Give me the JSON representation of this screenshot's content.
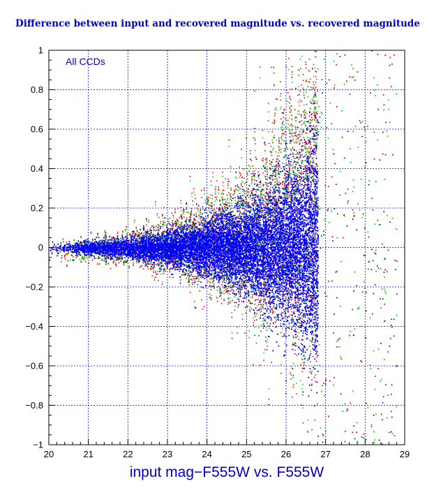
{
  "chart_data": {
    "type": "scatter",
    "title": "Difference between input and recovered magnitude vs. recovered magnitude",
    "xlabel": "input mag−F555W vs. F555W",
    "ylabel": "",
    "annotation": "All CCDs",
    "xlim": [
      20,
      29
    ],
    "ylim": [
      -1,
      1
    ],
    "x_ticks": [
      "20",
      "21",
      "22",
      "23",
      "24",
      "25",
      "26",
      "27",
      "28",
      "29"
    ],
    "y_ticks": [
      "−1",
      "−0.8",
      "−0.6",
      "−0.4",
      "−0.2",
      "0",
      "0.2",
      "0.4",
      "0.6",
      "0.8",
      "1"
    ],
    "grid": true,
    "colors": {
      "title": "#0000cc",
      "grid": "#0000cc",
      "main_points": "#0000ff",
      "red_points": "#ff0000",
      "green_points": "#00dd00",
      "black_points": "#000000"
    },
    "series": [
      {
        "color": "#0000ff",
        "description": "dense population, scatter widening with magnitude",
        "envelope": {
          "x": [
            20,
            21,
            22,
            23,
            24,
            25,
            26,
            26.5,
            26.8
          ],
          "y_halfwidth": [
            0.02,
            0.03,
            0.05,
            0.08,
            0.13,
            0.2,
            0.33,
            0.45,
            0.55
          ]
        },
        "mag_cutoff": 26.8
      },
      {
        "color": "#ff0000",
        "description": "outer envelope, reaches 1.0 above mag 25.5"
      },
      {
        "color": "#00dd00",
        "description": "outer envelope, sparse points beyond mag 26.8"
      },
      {
        "color": "#000000",
        "description": "sparse outliers"
      }
    ]
  }
}
